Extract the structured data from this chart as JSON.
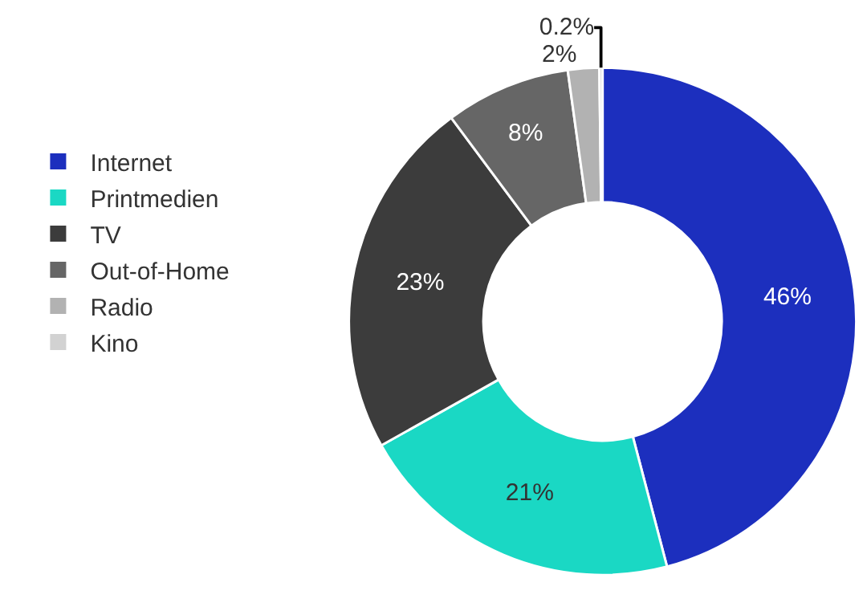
{
  "chart_data": {
    "type": "donut",
    "categories": [
      "Internet",
      "Printmedien",
      "TV",
      "Out-of-Home",
      "Radio",
      "Kino"
    ],
    "values": [
      46,
      21,
      23,
      8,
      2,
      0.2
    ],
    "colors": [
      "#1c2fbe",
      "#1ad8c4",
      "#3c3c3c",
      "#666666",
      "#b2b2b2",
      "#d2d2d2"
    ],
    "value_labels": [
      "46%",
      "21%",
      "23%",
      "8%",
      "2%",
      "0.2%"
    ],
    "legend": "left"
  }
}
